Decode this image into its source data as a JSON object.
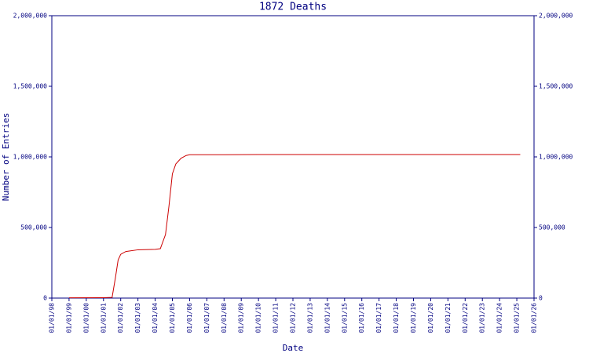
{
  "chart_data": {
    "type": "line",
    "title": "1872 Deaths",
    "x_label": "Date",
    "y_label": "Number of Entries",
    "x": [
      1999.0,
      2001.0,
      2001.5,
      2001.7,
      2001.85,
      2002.0,
      2002.3,
      2003.0,
      2004.0,
      2004.3,
      2004.6,
      2004.8,
      2005.0,
      2005.2,
      2005.5,
      2005.8,
      2006.0,
      2008.0,
      2010.0,
      2015.0,
      2020.0,
      2025.2
    ],
    "series": [
      {
        "color": "#cc0000",
        "values": [
          2000,
          3000,
          5000,
          150000,
          270000,
          310000,
          330000,
          342000,
          345000,
          350000,
          450000,
          650000,
          880000,
          950000,
          990000,
          1010000,
          1015000,
          1015000,
          1017000,
          1017000,
          1017000,
          1017000
        ]
      }
    ],
    "xlim": [
      1998,
      2026
    ],
    "xticks": [
      {
        "value": 1998,
        "label": "01/01/98"
      },
      {
        "value": 1999,
        "label": "01/01/99"
      },
      {
        "value": 2000,
        "label": "01/01/00"
      },
      {
        "value": 2001,
        "label": "01/01/01"
      },
      {
        "value": 2002,
        "label": "01/01/02"
      },
      {
        "value": 2003,
        "label": "01/01/03"
      },
      {
        "value": 2004,
        "label": "01/01/04"
      },
      {
        "value": 2005,
        "label": "01/01/05"
      },
      {
        "value": 2006,
        "label": "01/01/06"
      },
      {
        "value": 2007,
        "label": "01/01/07"
      },
      {
        "value": 2008,
        "label": "01/01/08"
      },
      {
        "value": 2009,
        "label": "01/01/09"
      },
      {
        "value": 2010,
        "label": "01/01/10"
      },
      {
        "value": 2011,
        "label": "01/01/11"
      },
      {
        "value": 2012,
        "label": "01/01/12"
      },
      {
        "value": 2013,
        "label": "01/01/13"
      },
      {
        "value": 2014,
        "label": "01/01/14"
      },
      {
        "value": 2015,
        "label": "01/01/15"
      },
      {
        "value": 2016,
        "label": "01/01/16"
      },
      {
        "value": 2017,
        "label": "01/01/17"
      },
      {
        "value": 2018,
        "label": "01/01/18"
      },
      {
        "value": 2019,
        "label": "01/01/19"
      },
      {
        "value": 2020,
        "label": "01/01/20"
      },
      {
        "value": 2021,
        "label": "01/01/21"
      },
      {
        "value": 2022,
        "label": "01/01/22"
      },
      {
        "value": 2023,
        "label": "01/01/23"
      },
      {
        "value": 2024,
        "label": "01/01/24"
      },
      {
        "value": 2025,
        "label": "01/01/25"
      },
      {
        "value": 2026,
        "label": "01/01/26"
      }
    ],
    "ylim": [
      0,
      2000000
    ],
    "yticks": [
      0,
      {
        "value": 500000,
        "label": "500,000"
      },
      {
        "value": 1000000,
        "label": "1,000,000"
      },
      {
        "value": 1500000,
        "label": "1,500,000"
      },
      {
        "value": 2000000,
        "label": "2,000,000"
      }
    ],
    "axis_color": "#000080"
  }
}
